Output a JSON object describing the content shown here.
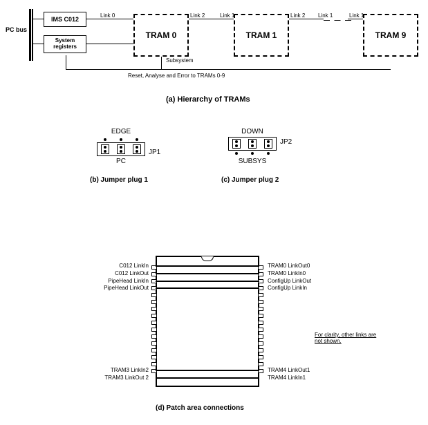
{
  "sectionA": {
    "pcBus": "PC bus",
    "imsC012": "IMS C012",
    "sysReg": "System registers",
    "tram0": "TRAM 0",
    "tram1": "TRAM 1",
    "tram9": "TRAM 9",
    "link0": "Link 0",
    "link1a": "Link 1",
    "link2a": "Link 2",
    "link1b": "Link 1",
    "link2b": "Link 2",
    "link1c": "Link 1",
    "subsystem": "Subsystem",
    "resetLine": "Reset, Analyse and Error to TRAMs 0-9",
    "caption": "(a) Hierarchy of TRAMs"
  },
  "sectionB": {
    "top": "EDGE",
    "bottom": "PC",
    "side": "JP1",
    "caption": "(b) Jumper plug 1"
  },
  "sectionC": {
    "top": "DOWN",
    "bottom": "SUBSYS",
    "side": "JP2",
    "caption": "(c) Jumper plug 2"
  },
  "sectionD": {
    "leftPins": [
      "C012 LinkIn",
      "C012 LinkOut",
      "PipeHead LinkIn",
      "PipeHead LinkOut",
      "",
      "",
      "",
      "",
      "",
      "",
      "",
      "",
      "",
      "",
      "TRAM3 LinkIn2",
      "TRAM3 LinkOut 2"
    ],
    "rightPins": [
      "TRAM0 LinkOut0",
      "TRAM0 LinkIn0",
      "ConfigUp LinkOut",
      "ConfigUp LinkIn",
      "",
      "",
      "",
      "",
      "",
      "",
      "",
      "",
      "",
      "",
      "TRAM4 LinkOut1",
      "TRAM4 LinkIn1"
    ],
    "note": "For clarity, other links are not shown.",
    "caption": "(d) Patch area connections"
  }
}
